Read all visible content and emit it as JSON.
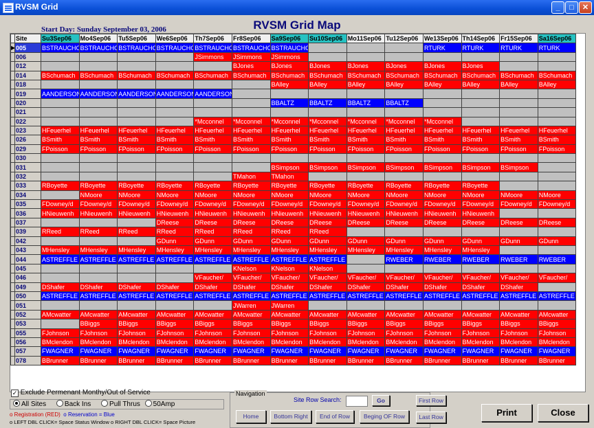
{
  "window": {
    "title": "RVSM Grid"
  },
  "heading": "RVSM Grid Map",
  "start_day": "Start Day: Sunday September 03, 2006",
  "grid": {
    "site_header": "Site",
    "days": [
      {
        "label": "Su3Sep06",
        "wk": true
      },
      {
        "label": "Mo4Sep06",
        "wk": false
      },
      {
        "label": "Tu5Sep06",
        "wk": false
      },
      {
        "label": "We6Sep06",
        "wk": false
      },
      {
        "label": "Th7Sep06",
        "wk": false
      },
      {
        "label": "Fr8Sep06",
        "wk": false
      },
      {
        "label": "Sa9Sep06",
        "wk": true
      },
      {
        "label": "Su10Sep06",
        "wk": true
      },
      {
        "label": "Mo11Sep06",
        "wk": false
      },
      {
        "label": "Tu12Sep06",
        "wk": false
      },
      {
        "label": "We13Sep06",
        "wk": false
      },
      {
        "label": "Th14Sep06",
        "wk": false
      },
      {
        "label": "Fr15Sep06",
        "wk": false
      },
      {
        "label": "Sa16Sep06",
        "wk": true
      }
    ],
    "rows": [
      {
        "site": "005",
        "cells": "b:BSTRAUCHO|b:BSTRAUCHO|b:BSTRAUCHO|b:BSTRAUCHO|b:BSTRAUCHO|b:BSTRAUCHO|b:BSTRAUCHO|e:|e:|e:|b:RTURK|b:RTURK|b:RTURK|b:RTURK"
      },
      {
        "site": "006",
        "cells": "e:|e:|e:|e:|r:JSimmons|r:JSimmons|r:JSimmons|e:|e:|e:|e:|e:|e:|e:"
      },
      {
        "site": "012",
        "cells": "e:|e:|e:|e:|e:|r:BJones|r:BJones|r:BJones|r:BJones|r:BJones|r:BJones|r:BJones|e:|e:"
      },
      {
        "site": "014",
        "cells": "r:BSchumach|r:BSchumach|r:BSchumach|r:BSchumach|r:BSchumach|r:BSchumach|r:BSchumach|r:BSchumach|r:BSchumach|r:BSchumach|r:BSchumach|r:BSchumach|r:BSchumach|r:BSchumach"
      },
      {
        "site": "018",
        "cells": "e:|e:|e:|e:|e:|e:|r:BAlley|r:BAlley|r:BAlley|r:BAlley|r:BAlley|r:BAlley|r:BAlley|r:BAlley"
      },
      {
        "site": "019",
        "cells": "b:AANDERSON|b:AANDERSON|b:AANDERSON|b:AANDERSON|b:AANDERSON|e:|e:|e:|e:|e:|e:|e:|e:|e:"
      },
      {
        "site": "020",
        "cells": "e:|e:|e:|e:|e:|e:|b:BBALTZ|b:BBALTZ|b:BBALTZ|b:BBALTZ|e:|e:|e:|e:"
      },
      {
        "site": "021",
        "cells": "e:|e:|e:|e:|e:|e:|e:|e:|e:|e:|e:|e:|e:|e:"
      },
      {
        "site": "022",
        "cells": "e:|e:|e:|e:|r:*Mcconnel|r:*Mcconnel|r:*Mcconnel|r:*Mcconnel|r:*Mcconnel|r:*Mcconnel|r:*Mcconnel|e:|e:|e:"
      },
      {
        "site": "023",
        "cells": "r:HFeuerhel|r:HFeuerhel|r:HFeuerhel|r:HFeuerhel|r:HFeuerhel|r:HFeuerhel|r:HFeuerhel|r:HFeuerhel|r:HFeuerhel|r:HFeuerhel|r:HFeuerhel|r:HFeuerhel|r:HFeuerhel|r:HFeuerhel"
      },
      {
        "site": "026",
        "cells": "r:BSmith|r:BSmith|r:BSmith|r:BSmith|r:BSmith|r:BSmith|r:BSmith|r:BSmith|r:BSmith|r:BSmith|r:BSmith|r:BSmith|r:BSmith|r:BSmith"
      },
      {
        "site": "029",
        "cells": "r:FPoisson|r:FPoisson|r:FPoisson|r:FPoisson|r:FPoisson|r:FPoisson|r:FPoisson|r:FPoisson|r:FPoisson|r:FPoisson|r:FPoisson|r:FPoisson|r:FPoisson|r:FPoisson"
      },
      {
        "site": "030",
        "cells": "e:|e:|e:|e:|e:|e:|e:|e:|e:|e:|e:|e:|e:|e:"
      },
      {
        "site": "031",
        "cells": "e:|e:|e:|e:|e:|e:|r:BSimpson|r:BSimpson|r:BSimpson|r:BSimpson|r:BSimpson|r:BSimpson|r:BSimpson|e:"
      },
      {
        "site": "032",
        "cells": "e:|e:|e:|e:|e:|r:TMahon|r:TMahon|e:|e:|e:|e:|e:|e:|e:"
      },
      {
        "site": "033",
        "cells": "r:RBoyette|r:RBoyette|r:RBoyette|r:RBoyette|r:RBoyette|r:RBoyette|r:RBoyette|r:RBoyette|r:RBoyette|r:RBoyette|r:RBoyette|r:RBoyette|e:|e:"
      },
      {
        "site": "034",
        "cells": "e:|r:NMoore|r:NMoore|r:NMoore|r:NMoore|r:NMoore|r:NMoore|r:NMoore|r:NMoore|r:NMoore|r:NMoore|r:NMoore|r:NMoore|r:NMoore"
      },
      {
        "site": "035",
        "cells": "r:FDowney/d|r:FDowney/d|r:FDowney/d|r:FDowney/d|r:FDowney/d|r:FDowney/d|r:FDowney/d|r:FDowney/d|r:FDowney/d|r:FDowney/d|r:FDowney/d|r:FDowney/d|r:FDowney/d|r:FDowney/d"
      },
      {
        "site": "036",
        "cells": "r:HNieuwenh|r:HNieuwenh|r:HNieuwenh|r:HNieuwenh|r:HNieuwenh|r:HNieuwenh|r:HNieuwenh|r:HNieuwenh|r:HNieuwenh|r:HNieuwenh|r:HNieuwenh|r:HNieuwenh|e:|e:"
      },
      {
        "site": "037",
        "cells": "e:|e:|e:|r:DReese|r:DReese|r:DReese|r:DReese|r:DReese|r:DReese|r:DReese|r:DReese|r:DReese|r:DReese|r:DReese"
      },
      {
        "site": "039",
        "cells": "r:RReed|r:RReed|r:RReed|r:RReed|r:RReed|r:RReed|r:RReed|r:RReed|e:|e:|e:|e:|e:|e:"
      },
      {
        "site": "042",
        "cells": "e:|e:|e:|r:GDunn|r:GDunn|r:GDunn|r:GDunn|r:GDunn|r:GDunn|r:GDunn|r:GDunn|r:GDunn|r:GDunn|r:GDunn"
      },
      {
        "site": "043",
        "cells": "r:MHensley|r:MHensley|r:MHensley|r:MHensley|r:MHensley|r:MHensley|r:MHensley|r:MHensley|r:MHensley|r:MHensley|r:MHensley|r:MHensley|e:|e:"
      },
      {
        "site": "044",
        "cells": "b:ASTREFFLE|b:ASTREFFLE|b:ASTREFFLE|b:ASTREFFLE|b:ASTREFFLE|b:ASTREFFLE|b:ASTREFFLE|b:ASTREFFLE|e:|b:RWEBER|b:RWEBER|b:RWEBER|b:RWEBER|b:RWEBER"
      },
      {
        "site": "045",
        "cells": "e:|e:|e:|e:|e:|r:KNelson|r:KNelson|r:KNelson|e:|e:|e:|e:|e:|e:"
      },
      {
        "site": "046",
        "cells": "e:|e:|e:|e:|r:VFaucher/|r:VFaucher/|r:VFaucher/|r:VFaucher/|r:VFaucher/|r:VFaucher/|r:VFaucher/|r:VFaucher/|r:VFaucher/|r:VFaucher/"
      },
      {
        "site": "049",
        "cells": "r:DShafer|r:DShafer|r:DShafer|r:DShafer|r:DShafer|r:DShafer|r:DShafer|r:DShafer|r:DShafer|r:DShafer|r:DShafer|r:DShafer|r:DShafer|e:"
      },
      {
        "site": "050",
        "cells": "b:ASTREFFLE|b:ASTREFFLE|b:ASTREFFLE|b:ASTREFFLE|b:ASTREFFLE|b:ASTREFFLE|b:ASTREFFLE|b:ASTREFFLE|b:ASTREFFLE|b:ASTREFFLE|b:ASTREFFLE|b:ASTREFFLE|b:ASTREFFLE|b:ASTREFFLE"
      },
      {
        "site": "051",
        "cells": "e:|e:|e:|e:|e:|r:JWarren|r:JWarren|e:|e:|e:|e:|e:|e:|e:"
      },
      {
        "site": "052",
        "cells": "r:AMcwatter|r:AMcwatter|r:AMcwatter|r:AMcwatter|r:AMcwatter|r:AMcwatter|r:AMcwatter|r:AMcwatter|r:AMcwatter|r:AMcwatter|r:AMcwatter|r:AMcwatter|r:AMcwatter|r:AMcwatter"
      },
      {
        "site": "053",
        "cells": "e:|r:BBiggs|r:BBiggs|r:BBiggs|r:BBiggs|r:BBiggs|r:BBiggs|r:BBiggs|r:BBiggs|r:BBiggs|r:BBiggs|r:BBiggs|r:BBiggs|r:BBiggs"
      },
      {
        "site": "055",
        "cells": "r:FJohnson|r:FJohnson|r:FJohnson|r:FJohnson|r:FJohnson|r:FJohnson|r:FJohnson|r:FJohnson|r:FJohnson|r:FJohnson|r:FJohnson|r:FJohnson|r:FJohnson|r:FJohnson"
      },
      {
        "site": "056",
        "cells": "r:BMclendon|r:BMclendon|r:BMclendon|r:BMclendon|r:BMclendon|r:BMclendon|r:BMclendon|r:BMclendon|r:BMclendon|r:BMclendon|r:BMclendon|r:BMclendon|r:BMclendon|r:BMclendon"
      },
      {
        "site": "057",
        "cells": "b:FWAGNER|b:FWAGNER|b:FWAGNER|b:FWAGNER|b:FWAGNER|b:FWAGNER|b:FWAGNER|b:FWAGNER|b:FWAGNER|b:FWAGNER|b:FWAGNER|b:FWAGNER|b:FWAGNER|b:FWAGNER"
      },
      {
        "site": "078",
        "cells": "r:BBrunner|r:BBrunner|r:BBrunner|r:BBrunner|r:BBrunner|r:BBrunner|r:BBrunner|r:BBrunner|r:BBrunner|r:BBrunner|r:BBrunner|r:BBrunner|r:BBrunner|r:BBrunner"
      }
    ]
  },
  "options": {
    "exclude_label": "Exclude Permenant Monthy/Out of Service",
    "radios": [
      "All Sites",
      "Back Ins",
      "Pull Thrus",
      "50Amp"
    ],
    "legend_reg": "Registration (RED)",
    "legend_res": "Reservation = Blue",
    "legend_clicks": "LEFT DBL CLICK= Space Status Window   o RIGHT DBL CLICK= Space Picture"
  },
  "navigation": {
    "label": "Navigation",
    "search_label": "Site Row Search:",
    "go": "Go",
    "first_row": "First Row",
    "last_row": "Last Row",
    "home": "Home",
    "bottom_right": "Bottom Right",
    "end_of_row": "End of Row",
    "begin_of_row": "Beging OF Row"
  },
  "actions": {
    "print": "Print",
    "close": "Close"
  },
  "colors": {
    "registration": "#ff0000",
    "reservation": "#0000ff",
    "weekend_header": "#26c2c2",
    "empty": "#c0c0c0"
  }
}
